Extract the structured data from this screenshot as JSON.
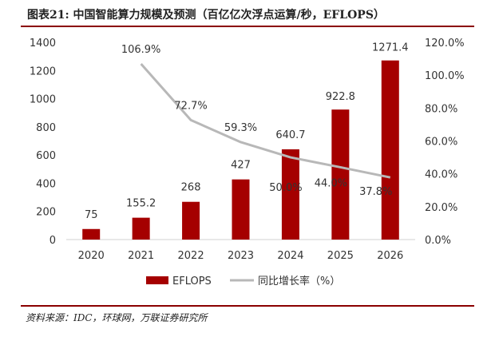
{
  "title": "图表21:  中国智能算力规模及预测（百亿亿次浮点运算/秒，EFLOPS）",
  "source": "资料来源：IDC，环球网，万联证券研究所",
  "colors": {
    "bar": "#a50000",
    "line": "#b8b8b8",
    "accent": "#8b0000"
  },
  "chart_data": {
    "type": "bar",
    "categories": [
      "2020",
      "2021",
      "2022",
      "2023",
      "2024",
      "2025",
      "2026"
    ],
    "series": [
      {
        "name": "EFLOPS",
        "type": "bar",
        "axis": "left",
        "values": [
          75,
          155.2,
          268,
          427,
          640.7,
          922.8,
          1271.4
        ],
        "labels": [
          "75",
          "155.2",
          "268",
          "427",
          "640.7",
          "922.8",
          "1271.4"
        ]
      },
      {
        "name": "同比增长率（%）",
        "type": "line",
        "axis": "right",
        "values": [
          null,
          106.9,
          72.7,
          59.3,
          50.0,
          44.0,
          37.8
        ],
        "labels": [
          "",
          "106.9%",
          "72.7%",
          "59.3%",
          "50.0%",
          "44.0%",
          "37.8%"
        ]
      }
    ],
    "left_axis": {
      "min": 0,
      "max": 1400,
      "ticks": [
        "0",
        "200",
        "400",
        "600",
        "800",
        "1000",
        "1200",
        "1400"
      ]
    },
    "right_axis": {
      "min": 0,
      "max": 120,
      "ticks": [
        "0.0%",
        "20.0%",
        "40.0%",
        "60.0%",
        "80.0%",
        "100.0%",
        "120.0%"
      ]
    },
    "grid": false,
    "legend": "bottom-center"
  }
}
